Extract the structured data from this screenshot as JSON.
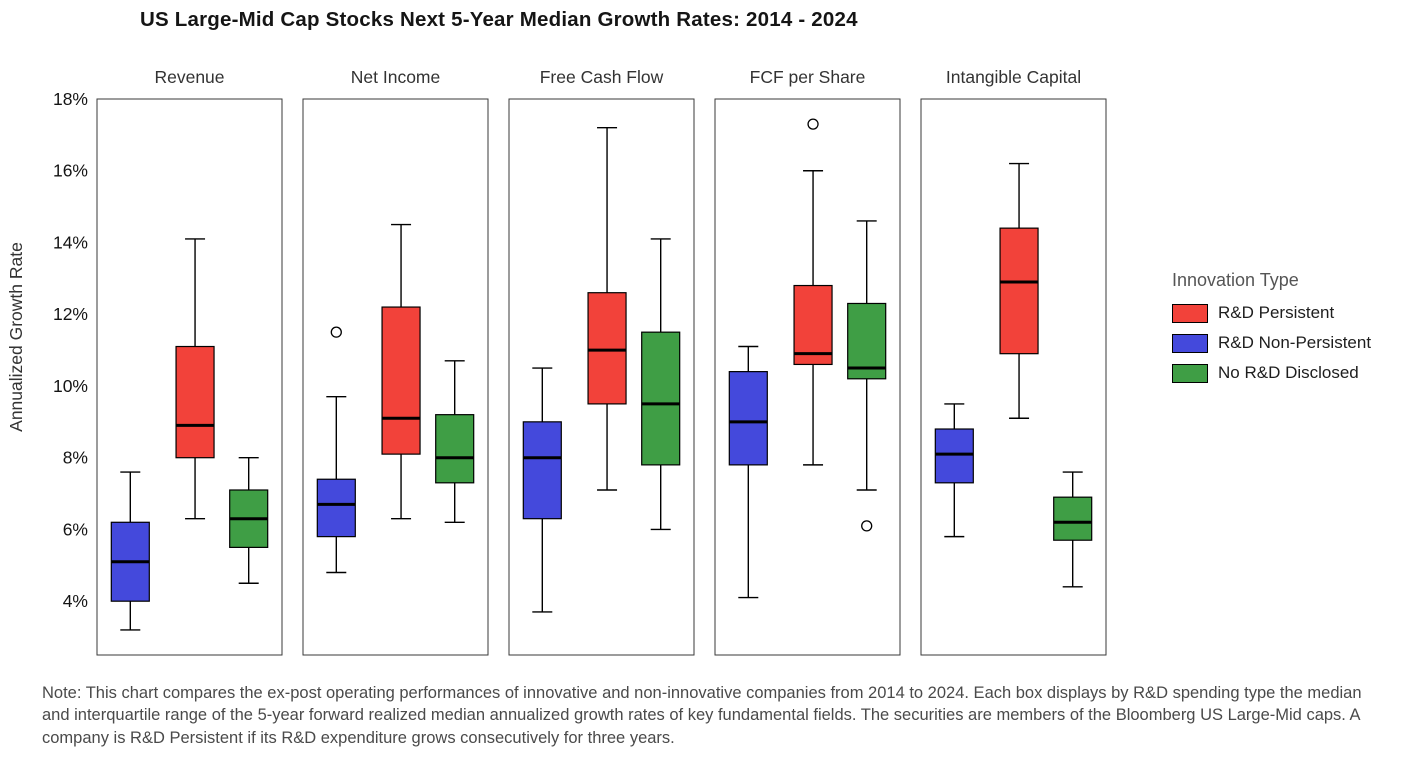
{
  "title": "US Large-Mid Cap Stocks Next 5-Year Median Growth Rates: 2014 - 2024",
  "note": "Note: This chart compares the ex-post operating performances of innovative and non-innovative companies from 2014 to 2024. Each box displays by R&D spending type the median and interquartile range of the 5-year forward realized median annualized growth rates of key fundamental fields. The securities are members of the Bloomberg US Large-Mid caps. A company is R&D Persistent if its R&D expenditure grows consecutively for three years.",
  "legend": {
    "title": "Innovation Type",
    "items": [
      {
        "label": "R&D Persistent",
        "color": "#f2423a"
      },
      {
        "label": "R&D Non-Persistent",
        "color": "#4449dc"
      },
      {
        "label": "No R&D Disclosed",
        "color": "#3f9e45"
      }
    ]
  },
  "chart_data": {
    "type": "boxplot",
    "title": "US Large-Mid Cap Stocks Next 5-Year Median Growth Rates: 2014 - 2024",
    "ylabel": "Annualized Growth Rate",
    "ylim": [
      2.5,
      18
    ],
    "yticks": [
      4,
      6,
      8,
      10,
      12,
      14,
      16,
      18
    ],
    "ytick_suffix": "%",
    "grid": false,
    "legend_position": "right",
    "series": [
      {
        "name": "R&D Persistent",
        "color": "#f2423a"
      },
      {
        "name": "R&D Non-Persistent",
        "color": "#4449dc"
      },
      {
        "name": "No R&D Disclosed",
        "color": "#3f9e45"
      }
    ],
    "panels": [
      {
        "label": "Revenue",
        "boxes": [
          {
            "series": "R&D Non-Persistent",
            "low": 3.2,
            "q1": 4.0,
            "median": 5.1,
            "q3": 6.2,
            "high": 7.6,
            "outliers": []
          },
          {
            "series": "R&D Persistent",
            "low": 6.3,
            "q1": 8.0,
            "median": 8.9,
            "q3": 11.1,
            "high": 14.1,
            "outliers": []
          },
          {
            "series": "No R&D Disclosed",
            "low": 4.5,
            "q1": 5.5,
            "median": 6.3,
            "q3": 7.1,
            "high": 8.0,
            "outliers": []
          }
        ]
      },
      {
        "label": "Net Income",
        "boxes": [
          {
            "series": "R&D Non-Persistent",
            "low": 4.8,
            "q1": 5.8,
            "median": 6.7,
            "q3": 7.4,
            "high": 9.7,
            "outliers": [
              11.5
            ]
          },
          {
            "series": "R&D Persistent",
            "low": 6.3,
            "q1": 8.1,
            "median": 9.1,
            "q3": 12.2,
            "high": 14.5,
            "outliers": []
          },
          {
            "series": "No R&D Disclosed",
            "low": 6.2,
            "q1": 7.3,
            "median": 8.0,
            "q3": 9.2,
            "high": 10.7,
            "outliers": []
          }
        ]
      },
      {
        "label": "Free Cash Flow",
        "boxes": [
          {
            "series": "R&D Non-Persistent",
            "low": 3.7,
            "q1": 6.3,
            "median": 8.0,
            "q3": 9.0,
            "high": 10.5,
            "outliers": []
          },
          {
            "series": "R&D Persistent",
            "low": 7.1,
            "q1": 9.5,
            "median": 11.0,
            "q3": 12.6,
            "high": 17.2,
            "outliers": []
          },
          {
            "series": "No R&D Disclosed",
            "low": 6.0,
            "q1": 7.8,
            "median": 9.5,
            "q3": 11.5,
            "high": 14.1,
            "outliers": []
          }
        ]
      },
      {
        "label": "FCF per Share",
        "boxes": [
          {
            "series": "R&D Non-Persistent",
            "low": 4.1,
            "q1": 7.8,
            "median": 9.0,
            "q3": 10.4,
            "high": 11.1,
            "outliers": []
          },
          {
            "series": "R&D Persistent",
            "low": 7.8,
            "q1": 10.6,
            "median": 10.9,
            "q3": 12.8,
            "high": 16.0,
            "outliers": [
              17.3
            ]
          },
          {
            "series": "No R&D Disclosed",
            "low": 7.1,
            "q1": 10.2,
            "median": 10.5,
            "q3": 12.3,
            "high": 14.6,
            "outliers": [
              6.1
            ]
          }
        ]
      },
      {
        "label": "Intangible Capital",
        "boxes": [
          {
            "series": "R&D Non-Persistent",
            "low": 5.8,
            "q1": 7.3,
            "median": 8.1,
            "q3": 8.8,
            "high": 9.5,
            "outliers": []
          },
          {
            "series": "R&D Persistent",
            "low": 9.1,
            "q1": 10.9,
            "median": 12.9,
            "q3": 14.4,
            "high": 16.2,
            "outliers": []
          },
          {
            "series": "No R&D Disclosed",
            "low": 4.4,
            "q1": 5.7,
            "median": 6.2,
            "q3": 6.9,
            "high": 7.6,
            "outliers": []
          }
        ]
      }
    ]
  }
}
